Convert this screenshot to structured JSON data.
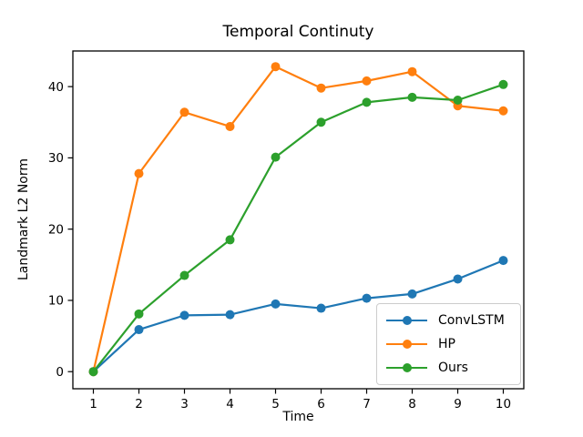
{
  "chart_data": {
    "type": "line",
    "title": "Temporal Continuty",
    "xlabel": "Time",
    "ylabel": "Landmark L2 Norm",
    "x": [
      1,
      2,
      3,
      4,
      5,
      6,
      7,
      8,
      9,
      10
    ],
    "series": [
      {
        "name": "ConvLSTM",
        "color": "#1f77b4",
        "values": [
          0.0,
          5.9,
          7.9,
          8.0,
          9.5,
          8.9,
          10.3,
          10.9,
          13.0,
          15.6
        ]
      },
      {
        "name": "HP",
        "color": "#ff7f0e",
        "values": [
          0.0,
          27.8,
          36.4,
          34.4,
          42.8,
          39.8,
          40.8,
          42.1,
          37.3,
          36.6
        ]
      },
      {
        "name": "Ours",
        "color": "#2ca02c",
        "values": [
          0.0,
          8.1,
          13.5,
          18.5,
          30.1,
          35.0,
          37.8,
          38.5,
          38.1,
          40.3
        ]
      }
    ],
    "xticks": [
      1,
      2,
      3,
      4,
      5,
      6,
      7,
      8,
      9,
      10
    ],
    "yticks": [
      0,
      10,
      20,
      30,
      40
    ],
    "xlim": [
      0.55,
      10.45
    ],
    "ylim": [
      -2.4,
      45.0
    ],
    "grid": false,
    "legend_position": "lower right",
    "marker": "circle",
    "axis_color": "#000000",
    "background_color": "#ffffff"
  }
}
